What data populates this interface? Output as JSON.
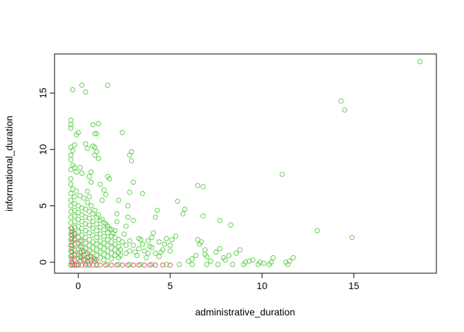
{
  "chart_data": {
    "type": "scatter",
    "title": "",
    "xlabel": "administrative_duration",
    "ylabel": "informational_duration",
    "xlim": [
      -0.5,
      18.7
    ],
    "ylim": [
      -0.3,
      17.8
    ],
    "x_ticks": [
      0,
      5,
      10,
      15
    ],
    "y_ticks": [
      0,
      5,
      10,
      15
    ],
    "grid": false,
    "legend": "none",
    "series": [
      {
        "color": "#DF536B",
        "description_hidden": true,
        "points": [
          [
            -0.4,
            -0.25
          ],
          [
            -0.3,
            -0.25
          ],
          [
            -0.2,
            -0.25
          ],
          [
            -0.1,
            -0.25
          ],
          [
            0.0,
            -0.25
          ],
          [
            0.2,
            -0.25
          ],
          [
            0.4,
            -0.25
          ],
          [
            0.6,
            -0.25
          ],
          [
            0.8,
            -0.25
          ],
          [
            1.0,
            -0.25
          ],
          [
            1.2,
            -0.25
          ],
          [
            1.5,
            -0.25
          ],
          [
            1.8,
            -0.25
          ],
          [
            2.1,
            -0.25
          ],
          [
            2.4,
            -0.25
          ],
          [
            2.7,
            -0.25
          ],
          [
            3.0,
            -0.25
          ],
          [
            3.3,
            -0.25
          ],
          [
            3.6,
            -0.25
          ],
          [
            3.9,
            -0.25
          ],
          [
            4.2,
            -0.25
          ],
          [
            4.6,
            -0.25
          ],
          [
            5.0,
            -0.25
          ],
          [
            -0.35,
            0.0
          ],
          [
            -0.35,
            0.3
          ],
          [
            -0.35,
            0.6
          ],
          [
            -0.35,
            0.9
          ],
          [
            -0.35,
            1.2
          ],
          [
            -0.35,
            1.5
          ],
          [
            -0.35,
            1.8
          ],
          [
            -0.35,
            2.1
          ],
          [
            -0.35,
            2.4
          ],
          [
            -0.35,
            2.7
          ],
          [
            -0.35,
            3.0
          ],
          [
            -0.2,
            0.2
          ],
          [
            -0.2,
            0.7
          ],
          [
            -0.2,
            1.1
          ],
          [
            -0.2,
            1.6
          ],
          [
            -0.2,
            2.0
          ],
          [
            -0.2,
            2.5
          ],
          [
            0.1,
            0.1
          ],
          [
            0.1,
            0.5
          ],
          [
            0.1,
            0.9
          ],
          [
            0.1,
            1.4
          ],
          [
            0.1,
            1.9
          ],
          [
            0.3,
            0.2
          ],
          [
            0.3,
            0.6
          ],
          [
            0.3,
            1.0
          ],
          [
            0.5,
            0.1
          ],
          [
            0.5,
            0.4
          ],
          [
            0.5,
            0.8
          ],
          [
            0.7,
            0.2
          ],
          [
            0.7,
            0.5
          ],
          [
            0.9,
            0.1
          ],
          [
            0.9,
            0.3
          ]
        ]
      },
      {
        "color": "#61D04F",
        "points": [
          [
            18.6,
            17.8
          ],
          [
            14.3,
            14.3
          ],
          [
            14.5,
            13.5
          ],
          [
            14.9,
            2.2
          ],
          [
            13.0,
            2.8
          ],
          [
            11.1,
            7.8
          ],
          [
            11.7,
            0.4
          ],
          [
            11.5,
            0.1
          ],
          [
            11.3,
            0.0
          ],
          [
            10.6,
            0.4
          ],
          [
            10.5,
            0.0
          ],
          [
            10.1,
            -0.1
          ],
          [
            9.9,
            0.0
          ],
          [
            9.5,
            0.2
          ],
          [
            9.3,
            0.1
          ],
          [
            9.1,
            0.0
          ],
          [
            8.8,
            1.1
          ],
          [
            8.6,
            0.8
          ],
          [
            8.3,
            3.3
          ],
          [
            8.2,
            0.6
          ],
          [
            8.0,
            0.2
          ],
          [
            7.9,
            0.4
          ],
          [
            7.7,
            3.7
          ],
          [
            7.7,
            1.2
          ],
          [
            7.5,
            0.9
          ],
          [
            7.2,
            0.1
          ],
          [
            7.0,
            0.5
          ],
          [
            6.8,
            4.1
          ],
          [
            6.8,
            6.7
          ],
          [
            6.5,
            6.8
          ],
          [
            6.6,
            1.6
          ],
          [
            6.5,
            2.0
          ],
          [
            6.7,
            1.8
          ],
          [
            6.9,
            1.1
          ],
          [
            6.9,
            0.7
          ],
          [
            6.4,
            0.6
          ],
          [
            6.2,
            0.3
          ],
          [
            6.0,
            0.1
          ],
          [
            5.8,
            4.7
          ],
          [
            5.7,
            4.3
          ],
          [
            5.4,
            5.4
          ],
          [
            5.3,
            2.3
          ],
          [
            5.1,
            2.0
          ],
          [
            5.0,
            1.5
          ],
          [
            5.0,
            1.0
          ],
          [
            4.8,
            2.1
          ],
          [
            4.7,
            1.6
          ],
          [
            4.5,
            0.9
          ],
          [
            4.4,
            0.5
          ],
          [
            4.3,
            4.6
          ],
          [
            4.2,
            4.0
          ],
          [
            4.1,
            2.6
          ],
          [
            4.0,
            2.2
          ],
          [
            3.9,
            1.4
          ],
          [
            3.8,
            0.8
          ],
          [
            3.7,
            0.4
          ],
          [
            3.5,
            6.1
          ],
          [
            3.4,
            2.0
          ],
          [
            3.3,
            1.2
          ],
          [
            3.2,
            0.6
          ],
          [
            3.0,
            7.1
          ],
          [
            3.0,
            3.7
          ],
          [
            2.9,
            9.8
          ],
          [
            2.8,
            9.5
          ],
          [
            2.9,
            9.0
          ],
          [
            2.8,
            6.2
          ],
          [
            2.7,
            5.0
          ],
          [
            2.7,
            4.0
          ],
          [
            2.6,
            3.2
          ],
          [
            2.5,
            2.5
          ],
          [
            2.4,
            1.8
          ],
          [
            2.3,
            1.1
          ],
          [
            2.3,
            0.6
          ],
          [
            2.4,
            11.5
          ],
          [
            2.2,
            5.5
          ],
          [
            2.1,
            4.3
          ],
          [
            2.1,
            3.6
          ],
          [
            2.0,
            2.8
          ],
          [
            1.6,
            15.7
          ],
          [
            1.7,
            7.4
          ],
          [
            1.6,
            7.6
          ],
          [
            1.4,
            6.4
          ],
          [
            1.5,
            6.0
          ],
          [
            1.3,
            5.5
          ],
          [
            1.2,
            6.9
          ],
          [
            1.1,
            9.2
          ],
          [
            1.0,
            9.8
          ],
          [
            1.0,
            11.4
          ],
          [
            1.1,
            12.3
          ],
          [
            0.9,
            11.4
          ],
          [
            0.8,
            12.2
          ],
          [
            0.8,
            10.3
          ],
          [
            0.9,
            10.2
          ],
          [
            0.9,
            9.5
          ],
          [
            0.7,
            8.0
          ],
          [
            0.6,
            7.6
          ],
          [
            0.7,
            7.1
          ],
          [
            0.5,
            6.3
          ],
          [
            0.6,
            5.8
          ],
          [
            0.4,
            10.5
          ],
          [
            0.5,
            10.1
          ],
          [
            0.4,
            15.1
          ],
          [
            0.2,
            15.7
          ],
          [
            -0.3,
            15.3
          ],
          [
            -0.4,
            12.6
          ],
          [
            -0.4,
            12.2
          ],
          [
            -0.4,
            11.9
          ],
          [
            -0.1,
            11.3
          ],
          [
            0.0,
            11.5
          ],
          [
            -0.2,
            10.4
          ],
          [
            -0.4,
            10.2
          ],
          [
            -0.4,
            9.5
          ],
          [
            -0.3,
            9.9
          ],
          [
            -0.4,
            9.1
          ],
          [
            -0.2,
            8.4
          ],
          [
            -0.4,
            8.2
          ],
          [
            -0.3,
            8.6
          ],
          [
            -0.1,
            8.0
          ],
          [
            0.1,
            8.4
          ],
          [
            0.2,
            7.9
          ],
          [
            -0.4,
            7.4
          ],
          [
            -0.4,
            6.9
          ],
          [
            -0.3,
            6.5
          ],
          [
            -0.4,
            6.1
          ],
          [
            -0.2,
            5.8
          ],
          [
            -0.1,
            6.3
          ],
          [
            0.1,
            5.9
          ],
          [
            0.3,
            5.7
          ],
          [
            0.5,
            5.3
          ],
          [
            0.7,
            5.0
          ],
          [
            0.9,
            4.6
          ],
          [
            1.1,
            4.2
          ],
          [
            1.3,
            3.8
          ],
          [
            1.5,
            3.4
          ],
          [
            1.7,
            3.0
          ],
          [
            1.9,
            2.6
          ],
          [
            -0.4,
            5.5
          ],
          [
            -0.4,
            5.0
          ],
          [
            -0.4,
            4.5
          ],
          [
            -0.4,
            4.0
          ],
          [
            -0.4,
            3.5
          ],
          [
            -0.4,
            3.0
          ],
          [
            -0.4,
            2.5
          ],
          [
            -0.4,
            2.0
          ],
          [
            -0.4,
            1.5
          ],
          [
            -0.4,
            1.0
          ],
          [
            -0.4,
            0.5
          ],
          [
            -0.2,
            5.2
          ],
          [
            -0.2,
            4.6
          ],
          [
            -0.2,
            4.1
          ],
          [
            -0.2,
            3.6
          ],
          [
            -0.2,
            3.1
          ],
          [
            -0.2,
            2.6
          ],
          [
            -0.2,
            2.1
          ],
          [
            -0.2,
            1.6
          ],
          [
            -0.2,
            1.1
          ],
          [
            -0.2,
            0.6
          ],
          [
            0.0,
            5.0
          ],
          [
            0.0,
            4.4
          ],
          [
            0.0,
            3.8
          ],
          [
            0.0,
            3.2
          ],
          [
            0.0,
            2.7
          ],
          [
            0.0,
            2.2
          ],
          [
            0.0,
            1.7
          ],
          [
            0.0,
            1.2
          ],
          [
            0.0,
            0.7
          ],
          [
            0.0,
            0.3
          ],
          [
            0.2,
            4.8
          ],
          [
            0.2,
            4.2
          ],
          [
            0.2,
            3.6
          ],
          [
            0.2,
            3.0
          ],
          [
            0.2,
            2.4
          ],
          [
            0.2,
            1.9
          ],
          [
            0.2,
            1.4
          ],
          [
            0.2,
            0.9
          ],
          [
            0.2,
            0.4
          ],
          [
            0.4,
            4.7
          ],
          [
            0.4,
            4.0
          ],
          [
            0.4,
            3.4
          ],
          [
            0.4,
            2.8
          ],
          [
            0.4,
            2.2
          ],
          [
            0.4,
            1.7
          ],
          [
            0.4,
            1.2
          ],
          [
            0.4,
            0.7
          ],
          [
            0.4,
            0.2
          ],
          [
            0.6,
            4.5
          ],
          [
            0.6,
            3.9
          ],
          [
            0.6,
            3.3
          ],
          [
            0.6,
            2.6
          ],
          [
            0.6,
            2.0
          ],
          [
            0.6,
            1.5
          ],
          [
            0.6,
            1.0
          ],
          [
            0.6,
            0.5
          ],
          [
            0.8,
            4.3
          ],
          [
            0.8,
            3.6
          ],
          [
            0.8,
            3.0
          ],
          [
            0.8,
            2.4
          ],
          [
            0.8,
            1.8
          ],
          [
            0.8,
            1.3
          ],
          [
            0.8,
            0.8
          ],
          [
            0.8,
            0.3
          ],
          [
            1.0,
            4.0
          ],
          [
            1.0,
            3.4
          ],
          [
            1.0,
            2.8
          ],
          [
            1.0,
            2.2
          ],
          [
            1.0,
            1.6
          ],
          [
            1.0,
            1.1
          ],
          [
            1.0,
            0.6
          ],
          [
            1.0,
            0.2
          ],
          [
            1.2,
            3.7
          ],
          [
            1.2,
            3.1
          ],
          [
            1.2,
            2.5
          ],
          [
            1.2,
            1.9
          ],
          [
            1.2,
            1.4
          ],
          [
            1.2,
            0.9
          ],
          [
            1.2,
            0.4
          ],
          [
            1.4,
            3.5
          ],
          [
            1.4,
            2.9
          ],
          [
            1.4,
            2.3
          ],
          [
            1.4,
            1.7
          ],
          [
            1.4,
            1.2
          ],
          [
            1.4,
            0.7
          ],
          [
            1.4,
            0.2
          ],
          [
            1.6,
            3.2
          ],
          [
            1.6,
            2.6
          ],
          [
            1.6,
            2.0
          ],
          [
            1.6,
            1.5
          ],
          [
            1.6,
            1.0
          ],
          [
            1.6,
            0.5
          ],
          [
            1.8,
            2.9
          ],
          [
            1.8,
            2.3
          ],
          [
            1.8,
            1.8
          ],
          [
            1.8,
            1.3
          ],
          [
            1.8,
            0.8
          ],
          [
            1.8,
            0.3
          ],
          [
            2.0,
            2.2
          ],
          [
            2.0,
            1.6
          ],
          [
            2.0,
            1.1
          ],
          [
            2.0,
            0.6
          ],
          [
            2.2,
            2.0
          ],
          [
            2.2,
            1.4
          ],
          [
            2.2,
            0.9
          ],
          [
            2.2,
            0.4
          ],
          [
            2.6,
            1.5
          ],
          [
            2.6,
            0.8
          ],
          [
            2.8,
            1.9
          ],
          [
            2.8,
            1.0
          ],
          [
            3.0,
            1.5
          ],
          [
            3.1,
            0.9
          ],
          [
            3.3,
            2.1
          ],
          [
            3.5,
            1.6
          ],
          [
            3.6,
            1.0
          ],
          [
            3.8,
            1.9
          ],
          [
            4.0,
            1.3
          ],
          [
            4.2,
            0.8
          ],
          [
            4.4,
            1.8
          ],
          [
            4.6,
            1.1
          ],
          [
            -0.4,
            -0.2
          ],
          [
            0.0,
            -0.2
          ],
          [
            0.5,
            -0.2
          ],
          [
            1.0,
            -0.2
          ],
          [
            1.6,
            -0.2
          ],
          [
            2.2,
            -0.2
          ],
          [
            2.8,
            -0.2
          ],
          [
            3.4,
            -0.2
          ],
          [
            4.0,
            -0.2
          ],
          [
            4.8,
            -0.2
          ],
          [
            5.5,
            -0.2
          ],
          [
            6.2,
            -0.2
          ],
          [
            7.0,
            -0.2
          ],
          [
            7.6,
            -0.2
          ],
          [
            8.4,
            -0.2
          ],
          [
            9.0,
            -0.2
          ],
          [
            9.8,
            -0.2
          ],
          [
            10.4,
            -0.2
          ],
          [
            11.4,
            -0.2
          ]
        ]
      }
    ]
  }
}
